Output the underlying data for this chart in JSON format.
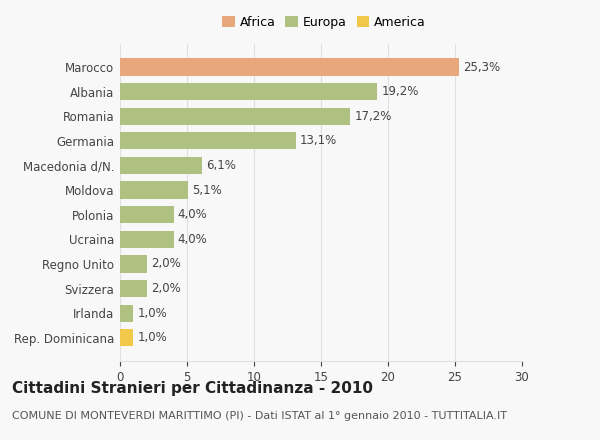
{
  "categories": [
    "Rep. Dominicana",
    "Irlanda",
    "Svizzera",
    "Regno Unito",
    "Ucraina",
    "Polonia",
    "Moldova",
    "Macedonia d/N.",
    "Germania",
    "Romania",
    "Albania",
    "Marocco"
  ],
  "values": [
    1.0,
    1.0,
    2.0,
    2.0,
    4.0,
    4.0,
    5.1,
    6.1,
    13.1,
    17.2,
    19.2,
    25.3
  ],
  "labels": [
    "1,0%",
    "1,0%",
    "2,0%",
    "2,0%",
    "4,0%",
    "4,0%",
    "5,1%",
    "6,1%",
    "13,1%",
    "17,2%",
    "19,2%",
    "25,3%"
  ],
  "colors": [
    "#f2c84b",
    "#afc180",
    "#afc180",
    "#afc180",
    "#afc180",
    "#afc180",
    "#afc180",
    "#afc180",
    "#afc180",
    "#afc180",
    "#afc180",
    "#e8a87c"
  ],
  "legend_labels": [
    "Africa",
    "Europa",
    "America"
  ],
  "legend_colors": [
    "#e8a87c",
    "#afc180",
    "#f2c84b"
  ],
  "title": "Cittadini Stranieri per Cittadinanza - 2010",
  "subtitle": "COMUNE DI MONTEVERDI MARITTIMO (PI) - Dati ISTAT al 1° gennaio 2010 - TUTTITALIA.IT",
  "xlim": [
    0,
    30
  ],
  "xticks": [
    0,
    5,
    10,
    15,
    20,
    25,
    30
  ],
  "background_color": "#f8f8f8",
  "grid_color": "#e0e0e0",
  "title_fontsize": 11,
  "subtitle_fontsize": 8,
  "label_fontsize": 8.5,
  "tick_fontsize": 8.5,
  "legend_fontsize": 9
}
